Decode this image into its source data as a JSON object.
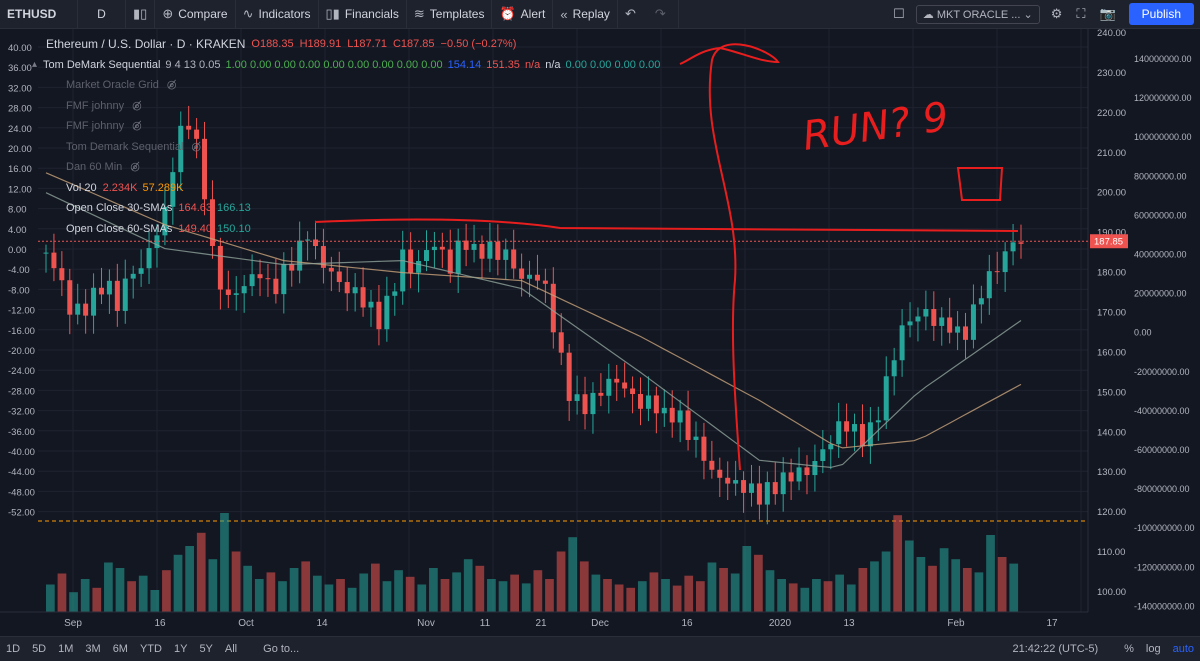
{
  "toolbar": {
    "symbol": "ETHUSD",
    "interval": "D",
    "compare": "Compare",
    "indicators": "Indicators",
    "financials": "Financials",
    "templates": "Templates",
    "alert": "Alert",
    "replay": "Replay",
    "layout_name": "MKT ORACLE ...",
    "publish": "Publish"
  },
  "legend": {
    "title": "Ethereum / U.S. Dollar · D · KRAKEN",
    "open": "O188.35",
    "high": "H189.91",
    "low": "L187.71",
    "close": "C187.85",
    "change": "−0.50 (−0.27%)",
    "indicator_main": "Tom DeMark Sequential",
    "indicator_main_params": "9 4 13 0.05",
    "indicator_main_values": "1.00 0.00 0.00 0.00 0.00 0.00 0.00 0.00 0.00",
    "indicator_main_values2": "154.14",
    "indicator_main_values3": "151.35",
    "indicator_main_values4": "n/a",
    "indicator_main_values5": "n/a",
    "indicator_main_values6": "0.00 0.00 0.00 0.00",
    "hidden_indicators": [
      "Market Oracle Grid",
      "FMF johnny",
      "FMF johnny",
      "Tom Demark Sequential",
      "Dan 60 Min"
    ],
    "vol_label": "Vol 20",
    "vol_value1": "2.234K",
    "vol_value2": "57.289K",
    "sma30_label": "Open Close 30-SMAs",
    "sma30_v1": "164.63",
    "sma30_v2": "166.13",
    "sma60_label": "Open Close 60-SMAs",
    "sma60_v1": "149.40",
    "sma60_v2": "150.10"
  },
  "annotation_text": "RUN? 9",
  "chart_data": {
    "type": "candlestick",
    "price_axis": {
      "ticks": [
        "240.00",
        "230.00",
        "220.00",
        "210.00",
        "200.00",
        "190.00",
        "180.00",
        "170.00",
        "160.00",
        "150.00",
        "140.00",
        "130.00",
        "120.00",
        "110.00",
        "100.00"
      ],
      "range": [
        95,
        241
      ],
      "last_price": "187.85"
    },
    "left_axis": {
      "ticks": [
        "40.00",
        "36.00",
        "32.00",
        "28.00",
        "24.00",
        "20.00",
        "16.00",
        "12.00",
        "8.00",
        "4.00",
        "0.00",
        "-4.00",
        "-8.00",
        "-12.00",
        "-16.00",
        "-20.00",
        "-24.00",
        "-28.00",
        "-32.00",
        "-36.00",
        "-40.00",
        "-44.00",
        "-48.00",
        "-52.00"
      ]
    },
    "volume_axis": {
      "ticks": [
        "140000000.00",
        "120000000.00",
        "100000000.00",
        "80000000.00",
        "60000000.00",
        "40000000.00",
        "20000000.00",
        "0.00",
        "-20000000.00",
        "-40000000.00",
        "-60000000.00",
        "-80000000.00",
        "-100000000.00",
        "-120000000.00",
        "-140000000.00"
      ]
    },
    "time_axis": {
      "labels": [
        "Sep",
        "16",
        "Oct",
        "14",
        "Nov",
        "11",
        "21",
        "Dec",
        "16",
        "2020",
        "13",
        "Feb",
        "17"
      ]
    },
    "close_path": [
      [
        0,
        185
      ],
      [
        3,
        180
      ],
      [
        6,
        171
      ],
      [
        9,
        170
      ],
      [
        12,
        174
      ],
      [
        15,
        178
      ],
      [
        18,
        172
      ],
      [
        21,
        180
      ],
      [
        24,
        181
      ],
      [
        27,
        188
      ],
      [
        30,
        195
      ],
      [
        33,
        213
      ],
      [
        36,
        218
      ],
      [
        39,
        208
      ],
      [
        42,
        185
      ],
      [
        45,
        173
      ],
      [
        48,
        175
      ],
      [
        51,
        178
      ],
      [
        54,
        180
      ],
      [
        57,
        175
      ],
      [
        60,
        180
      ],
      [
        63,
        184
      ],
      [
        66,
        190
      ],
      [
        69,
        183
      ],
      [
        72,
        180
      ],
      [
        75,
        176
      ],
      [
        78,
        175
      ],
      [
        81,
        172
      ],
      [
        84,
        168
      ],
      [
        87,
        174
      ],
      [
        90,
        184
      ],
      [
        93,
        180
      ],
      [
        96,
        186
      ],
      [
        99,
        187
      ],
      [
        102,
        181
      ],
      [
        105,
        189
      ],
      [
        108,
        185
      ],
      [
        111,
        186
      ],
      [
        114,
        185
      ],
      [
        117,
        184
      ],
      [
        120,
        178
      ],
      [
        123,
        180
      ],
      [
        126,
        176
      ],
      [
        129,
        162
      ],
      [
        132,
        150
      ],
      [
        135,
        146
      ],
      [
        138,
        148
      ],
      [
        141,
        152
      ],
      [
        144,
        153
      ],
      [
        147,
        150
      ],
      [
        150,
        147
      ],
      [
        153,
        148
      ],
      [
        156,
        144
      ],
      [
        159,
        145
      ],
      [
        162,
        140
      ],
      [
        165,
        136
      ],
      [
        168,
        130
      ],
      [
        171,
        128
      ],
      [
        174,
        127
      ],
      [
        177,
        126
      ],
      [
        180,
        124
      ],
      [
        183,
        126
      ],
      [
        186,
        128
      ],
      [
        189,
        130
      ],
      [
        192,
        130
      ],
      [
        195,
        134
      ],
      [
        198,
        138
      ],
      [
        201,
        143
      ],
      [
        204,
        140
      ],
      [
        207,
        138
      ],
      [
        210,
        145
      ],
      [
        213,
        156
      ],
      [
        216,
        166
      ],
      [
        219,
        169
      ],
      [
        222,
        170
      ],
      [
        225,
        167
      ],
      [
        228,
        167
      ],
      [
        231,
        163
      ],
      [
        234,
        170
      ],
      [
        237,
        178
      ],
      [
        240,
        181
      ],
      [
        243,
        187
      ],
      [
        246,
        188
      ]
    ],
    "sma_slow": [
      [
        0,
        205
      ],
      [
        30,
        192
      ],
      [
        60,
        183
      ],
      [
        90,
        180
      ],
      [
        120,
        178
      ],
      [
        150,
        164
      ],
      [
        180,
        148
      ],
      [
        200,
        136
      ],
      [
        220,
        138
      ],
      [
        246,
        152
      ]
    ],
    "sma_fast": [
      [
        0,
        200
      ],
      [
        30,
        186
      ],
      [
        60,
        182
      ],
      [
        90,
        183
      ],
      [
        120,
        176
      ],
      [
        150,
        155
      ],
      [
        180,
        133
      ],
      [
        200,
        131
      ],
      [
        220,
        150
      ],
      [
        246,
        168
      ]
    ],
    "volume_heights": [
      0.25,
      0.35,
      0.18,
      0.3,
      0.22,
      0.45,
      0.4,
      0.28,
      0.33,
      0.2,
      0.38,
      0.52,
      0.6,
      0.72,
      0.48,
      0.9,
      0.55,
      0.42,
      0.3,
      0.36,
      0.28,
      0.4,
      0.46,
      0.33,
      0.25,
      0.3,
      0.22,
      0.35,
      0.44,
      0.28,
      0.38,
      0.32,
      0.25,
      0.4,
      0.3,
      0.36,
      0.48,
      0.42,
      0.3,
      0.28,
      0.34,
      0.26,
      0.38,
      0.3,
      0.55,
      0.68,
      0.46,
      0.34,
      0.3,
      0.25,
      0.22,
      0.28,
      0.36,
      0.3,
      0.24,
      0.33,
      0.28,
      0.45,
      0.4,
      0.35,
      0.6,
      0.52,
      0.38,
      0.3,
      0.26,
      0.22,
      0.3,
      0.28,
      0.34,
      0.25,
      0.4,
      0.46,
      0.55,
      0.88,
      0.65,
      0.5,
      0.42,
      0.58,
      0.48,
      0.4,
      0.36,
      0.7,
      0.5,
      0.44
    ]
  }
}
